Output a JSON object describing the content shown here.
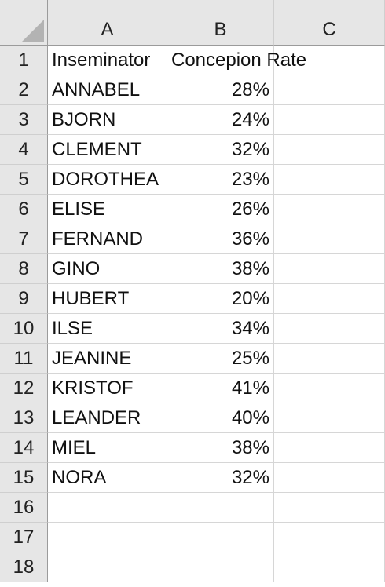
{
  "columns": [
    "A",
    "B",
    "C"
  ],
  "row_numbers": [
    "1",
    "2",
    "3",
    "4",
    "5",
    "6",
    "7",
    "8",
    "9",
    "10",
    "11",
    "12",
    "13",
    "14",
    "15",
    "16",
    "17",
    "18"
  ],
  "header": {
    "a": "Inseminator",
    "b": "Concepion Rate",
    "c": ""
  },
  "rows": [
    {
      "a": "ANNABEL",
      "b": "28%"
    },
    {
      "a": "BJORN",
      "b": "24%"
    },
    {
      "a": "CLEMENT",
      "b": "32%"
    },
    {
      "a": "DOROTHEA",
      "b": "23%"
    },
    {
      "a": "ELISE",
      "b": "26%"
    },
    {
      "a": "FERNAND",
      "b": "36%"
    },
    {
      "a": "GINO",
      "b": "38%"
    },
    {
      "a": "HUBERT",
      "b": "20%"
    },
    {
      "a": "ILSE",
      "b": "34%"
    },
    {
      "a": "JEANINE",
      "b": "25%"
    },
    {
      "a": "KRISTOF",
      "b": "41%"
    },
    {
      "a": "LEANDER",
      "b": "40%"
    },
    {
      "a": "MIEL",
      "b": "38%"
    },
    {
      "a": "NORA",
      "b": "32%"
    }
  ]
}
